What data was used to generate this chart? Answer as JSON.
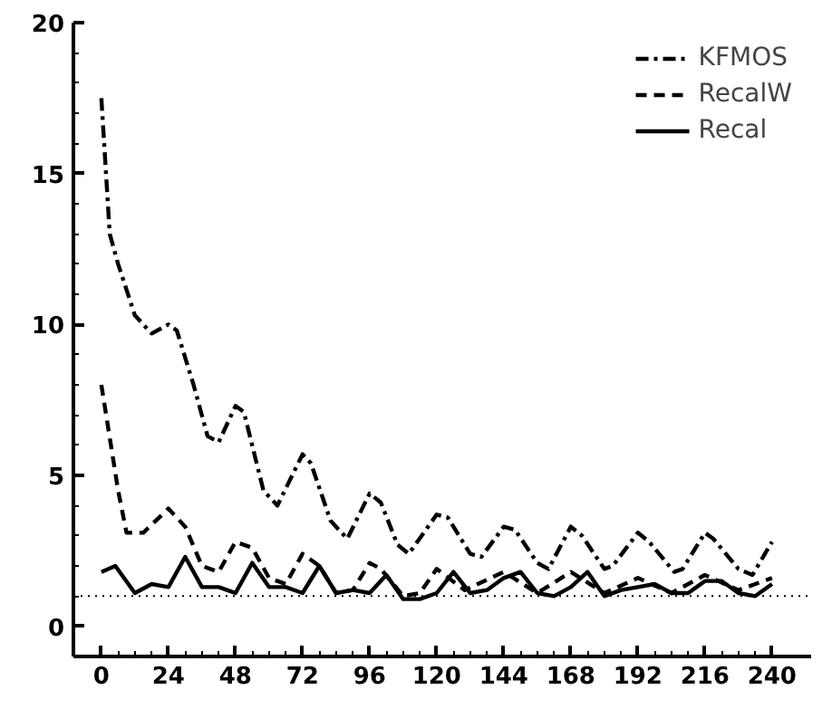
{
  "chart_data": {
    "type": "line",
    "xlim": [
      -10,
      254
    ],
    "ylim": [
      -1,
      20
    ],
    "xticks": [
      0,
      24,
      48,
      72,
      96,
      120,
      144,
      168,
      192,
      216,
      240
    ],
    "yticks": [
      0,
      5,
      10,
      15,
      20
    ],
    "grid": false,
    "legend": "top right",
    "marker": "none",
    "ref_lines": [
      {
        "axis": "y",
        "value": 1,
        "line_style": "dotted",
        "color": "#000000"
      }
    ],
    "series": [
      {
        "name": "KFMOS",
        "color": "#000000",
        "line_style": "dashdot",
        "x": [
          0,
          3,
          6,
          12,
          18,
          24,
          27,
          33,
          38,
          42,
          48,
          51,
          58,
          63,
          72,
          75,
          82,
          88,
          96,
          100,
          106,
          110,
          120,
          124,
          132,
          136,
          144,
          148,
          156,
          160,
          168,
          172,
          180,
          183,
          192,
          196,
          205,
          208,
          216,
          219,
          228,
          233,
          240
        ],
        "values": [
          17.5,
          13,
          12,
          10.3,
          9.7,
          10,
          9.8,
          8,
          6.3,
          6.1,
          7.3,
          7.1,
          4.5,
          4,
          5.7,
          5.4,
          3.5,
          2.9,
          4.4,
          4.1,
          2.7,
          2.4,
          3.7,
          3.6,
          2.4,
          2.3,
          3.3,
          3.2,
          2.1,
          1.9,
          3.3,
          3,
          1.9,
          2,
          3.1,
          2.8,
          1.8,
          1.9,
          3.1,
          2.9,
          1.9,
          1.7,
          2.8
        ]
      },
      {
        "name": "RecalW",
        "color": "#000000",
        "line_style": "dashed",
        "x": [
          0,
          6,
          9,
          15,
          24,
          30,
          36,
          42,
          48,
          54,
          60,
          66,
          72,
          78,
          84,
          90,
          96,
          100,
          108,
          114,
          120,
          130,
          144,
          156,
          168,
          180,
          192,
          204,
          216,
          228,
          240
        ],
        "values": [
          8,
          4.5,
          3.1,
          3.1,
          3.9,
          3.3,
          2,
          1.8,
          2.8,
          2.6,
          1.6,
          1.4,
          2.4,
          2,
          1.1,
          1.2,
          2.1,
          1.9,
          1,
          1.1,
          1.9,
          1.2,
          1.8,
          1.1,
          1.8,
          1.1,
          1.6,
          1.1,
          1.7,
          1.2,
          1.6
        ]
      },
      {
        "name": "Recal",
        "color": "#000000",
        "line_style": "solid",
        "x": [
          0,
          5,
          12,
          18,
          24,
          30,
          36,
          42,
          48,
          54,
          60,
          66,
          72,
          78,
          84,
          90,
          96,
          102,
          108,
          114,
          120,
          126,
          132,
          138,
          144,
          150,
          156,
          162,
          168,
          174,
          180,
          186,
          192,
          198,
          204,
          210,
          216,
          222,
          228,
          234,
          240
        ],
        "values": [
          1.8,
          2,
          1.1,
          1.4,
          1.3,
          2.3,
          1.3,
          1.3,
          1.1,
          2.1,
          1.3,
          1.3,
          1.1,
          2,
          1.1,
          1.2,
          1.1,
          1.7,
          0.9,
          0.9,
          1.1,
          1.8,
          1.1,
          1.2,
          1.6,
          1.8,
          1.1,
          1,
          1.3,
          1.8,
          1,
          1.2,
          1.3,
          1.4,
          1.1,
          1.1,
          1.5,
          1.5,
          1.1,
          1,
          1.4
        ]
      }
    ]
  }
}
